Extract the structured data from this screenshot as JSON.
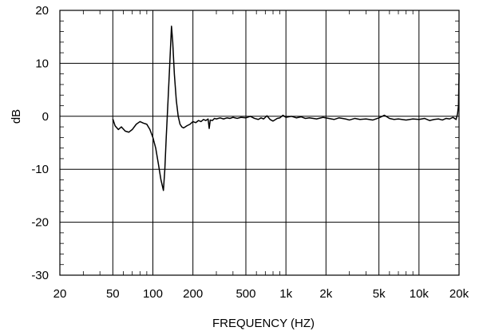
{
  "chart_data": {
    "type": "line",
    "xlabel": "FREQUENCY  (HZ)",
    "ylabel": "dB",
    "x_scale": "log",
    "xlim": [
      20,
      20000
    ],
    "ylim": [
      -30,
      20
    ],
    "grid": true,
    "x_ticks": [
      {
        "value": 20,
        "label": "20"
      },
      {
        "value": 50,
        "label": "50"
      },
      {
        "value": 100,
        "label": "100"
      },
      {
        "value": 200,
        "label": "200"
      },
      {
        "value": 500,
        "label": "500"
      },
      {
        "value": 1000,
        "label": "1k"
      },
      {
        "value": 2000,
        "label": "2k"
      },
      {
        "value": 5000,
        "label": "5k"
      },
      {
        "value": 10000,
        "label": "10k"
      },
      {
        "value": 20000,
        "label": "20k"
      }
    ],
    "y_ticks": [
      {
        "value": 20,
        "label": "20"
      },
      {
        "value": 10,
        "label": "10"
      },
      {
        "value": 0,
        "label": "0"
      },
      {
        "value": -10,
        "label": "-10"
      },
      {
        "value": -20,
        "label": "-20"
      },
      {
        "value": -30,
        "label": "-30"
      }
    ],
    "series": [
      {
        "color": "#000000",
        "x": [
          50,
          52,
          55,
          58,
          62,
          66,
          70,
          75,
          80,
          85,
          90,
          95,
          100,
          105,
          110,
          115,
          120,
          123,
          126,
          130,
          134,
          138,
          141,
          145,
          150,
          155,
          160,
          165,
          170,
          175,
          180,
          190,
          200,
          210,
          220,
          230,
          240,
          250,
          260,
          265,
          270,
          280,
          290,
          300,
          320,
          340,
          360,
          380,
          400,
          430,
          460,
          500,
          540,
          580,
          620,
          650,
          680,
          720,
          760,
          800,
          860,
          900,
          950,
          1000,
          1100,
          1200,
          1300,
          1400,
          1500,
          1700,
          1900,
          2100,
          2300,
          2500,
          2800,
          3000,
          3300,
          3600,
          4000,
          4500,
          5000,
          5500,
          6000,
          6500,
          7000,
          8000,
          9000,
          10000,
          11000,
          12000,
          13000,
          14000,
          15000,
          16000,
          17000,
          18000,
          19000,
          19500,
          19800,
          20000
        ],
        "y": [
          -0.5,
          -1.8,
          -2.5,
          -2.0,
          -2.8,
          -3.0,
          -2.5,
          -1.5,
          -1.0,
          -1.3,
          -1.5,
          -2.5,
          -4.0,
          -6.0,
          -9.0,
          -12.0,
          -14.0,
          -10.0,
          -4.0,
          3.0,
          10.0,
          17.0,
          14.0,
          8.0,
          3.0,
          0.0,
          -1.5,
          -2.0,
          -2.2,
          -2.0,
          -1.8,
          -1.5,
          -1.0,
          -1.2,
          -0.8,
          -1.0,
          -0.6,
          -0.8,
          -0.5,
          -2.3,
          -0.7,
          -0.8,
          -0.4,
          -0.5,
          -0.3,
          -0.5,
          -0.3,
          -0.4,
          -0.2,
          -0.4,
          -0.2,
          -0.3,
          0.0,
          -0.4,
          -0.6,
          -0.3,
          -0.5,
          0.1,
          -0.6,
          -0.9,
          -0.4,
          -0.3,
          0.2,
          -0.2,
          0.0,
          -0.3,
          -0.1,
          -0.4,
          -0.3,
          -0.5,
          -0.2,
          -0.4,
          -0.6,
          -0.3,
          -0.5,
          -0.7,
          -0.4,
          -0.6,
          -0.5,
          -0.7,
          -0.3,
          0.2,
          -0.4,
          -0.6,
          -0.5,
          -0.7,
          -0.5,
          -0.6,
          -0.4,
          -0.8,
          -0.6,
          -0.5,
          -0.7,
          -0.4,
          -0.5,
          -0.2,
          -0.6,
          0.5,
          2.0,
          8.0
        ]
      }
    ]
  }
}
